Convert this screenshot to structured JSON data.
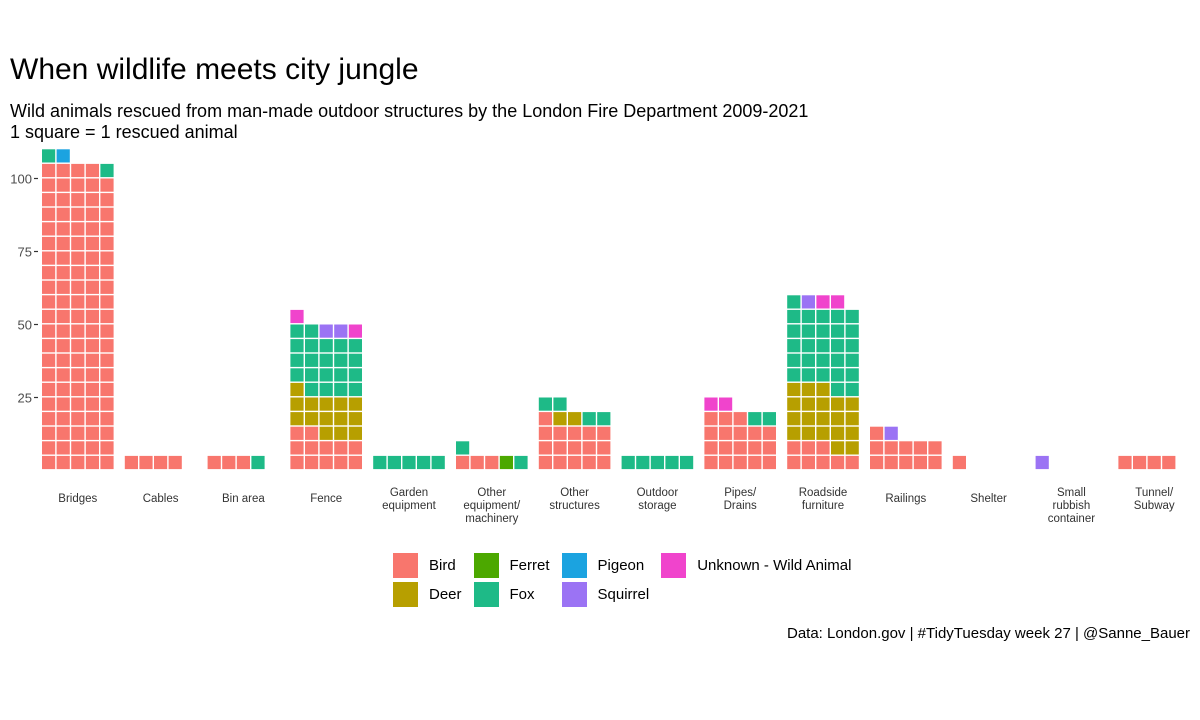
{
  "title": "When wildlife meets city jungle",
  "subtitle_lines": [
    "Wild animals rescued from man-made outdoor structures by the London Fire Department 2009-2021",
    "1 square = 1 rescued animal"
  ],
  "caption": "Data: London.gov | #TidyTuesday week 27 | @Sanne_Bauer",
  "colors": {
    "Bird": "#F8766D",
    "Deer": "#B79F00",
    "Ferret": "#4CA800",
    "Fox": "#1EBA87",
    "Pigeon": "#1BA3E0",
    "Squirrel": "#9B73F4",
    "Unknown - Wild Animal": "#F044CC"
  },
  "legend": [
    {
      "label": "Bird",
      "color": "#F8766D"
    },
    {
      "label": "Deer",
      "color": "#B79F00"
    },
    {
      "label": "Ferret",
      "color": "#4CA800"
    },
    {
      "label": "Fox",
      "color": "#1EBA87"
    },
    {
      "label": "Pigeon",
      "color": "#1BA3E0"
    },
    {
      "label": "Squirrel",
      "color": "#9B73F4"
    },
    {
      "label": "Unknown - Wild Animal",
      "color": "#F044CC"
    }
  ],
  "chart_data": {
    "type": "waffle",
    "title": "When wildlife meets city jungle",
    "columns_per_category": 5,
    "ylim": [
      0,
      110
    ],
    "y_ticks": [
      25,
      50,
      75,
      100
    ],
    "grid": false,
    "legend_position": "bottom",
    "categories": [
      {
        "label": [
          "Bridges"
        ],
        "counts": [
          {
            "animal": "Bird",
            "n": 104
          },
          {
            "animal": "Fox",
            "n": 2
          },
          {
            "animal": "Pigeon",
            "n": 1
          }
        ]
      },
      {
        "label": [
          "Cables"
        ],
        "counts": [
          {
            "animal": "Bird",
            "n": 4
          }
        ]
      },
      {
        "label": [
          "Bin area"
        ],
        "counts": [
          {
            "animal": "Bird",
            "n": 3
          },
          {
            "animal": "Fox",
            "n": 1
          }
        ]
      },
      {
        "label": [
          "Fence"
        ],
        "counts": [
          {
            "animal": "Bird",
            "n": 12
          },
          {
            "animal": "Deer",
            "n": 14
          },
          {
            "animal": "Fox",
            "n": 21
          },
          {
            "animal": "Squirrel",
            "n": 2
          },
          {
            "animal": "Unknown - Wild Animal",
            "n": 2
          }
        ]
      },
      {
        "label": [
          "Garden",
          "equipment"
        ],
        "counts": [
          {
            "animal": "Fox",
            "n": 5
          }
        ]
      },
      {
        "label": [
          "Other",
          "equipment/",
          "machinery"
        ],
        "counts": [
          {
            "animal": "Bird",
            "n": 3
          },
          {
            "animal": "Ferret",
            "n": 1
          },
          {
            "animal": "Fox",
            "n": 2
          }
        ]
      },
      {
        "label": [
          "Other",
          "structures"
        ],
        "counts": [
          {
            "animal": "Bird",
            "n": 16
          },
          {
            "animal": "Deer",
            "n": 2
          },
          {
            "animal": "Fox",
            "n": 4
          }
        ]
      },
      {
        "label": [
          "Outdoor",
          "storage"
        ],
        "counts": [
          {
            "animal": "Fox",
            "n": 5
          }
        ]
      },
      {
        "label": [
          "Pipes/",
          "Drains"
        ],
        "counts": [
          {
            "animal": "Bird",
            "n": 18
          },
          {
            "animal": "Fox",
            "n": 2
          },
          {
            "animal": "Unknown - Wild Animal",
            "n": 2
          }
        ]
      },
      {
        "label": [
          "Roadside",
          "furniture"
        ],
        "counts": [
          {
            "animal": "Bird",
            "n": 8
          },
          {
            "animal": "Deer",
            "n": 20
          },
          {
            "animal": "Fox",
            "n": 28
          },
          {
            "animal": "Squirrel",
            "n": 1
          },
          {
            "animal": "Unknown - Wild Animal",
            "n": 2
          }
        ]
      },
      {
        "label": [
          "Railings"
        ],
        "counts": [
          {
            "animal": "Bird",
            "n": 11
          },
          {
            "animal": "Squirrel",
            "n": 1
          }
        ]
      },
      {
        "label": [
          "Shelter"
        ],
        "counts": [
          {
            "animal": "Bird",
            "n": 1
          }
        ]
      },
      {
        "label": [
          "Small",
          "rubbish",
          "container"
        ],
        "counts": [
          {
            "animal": "Squirrel",
            "n": 1
          }
        ]
      },
      {
        "label": [
          "Tunnel/",
          "Subway"
        ],
        "counts": [
          {
            "animal": "Bird",
            "n": 4
          }
        ]
      }
    ]
  }
}
